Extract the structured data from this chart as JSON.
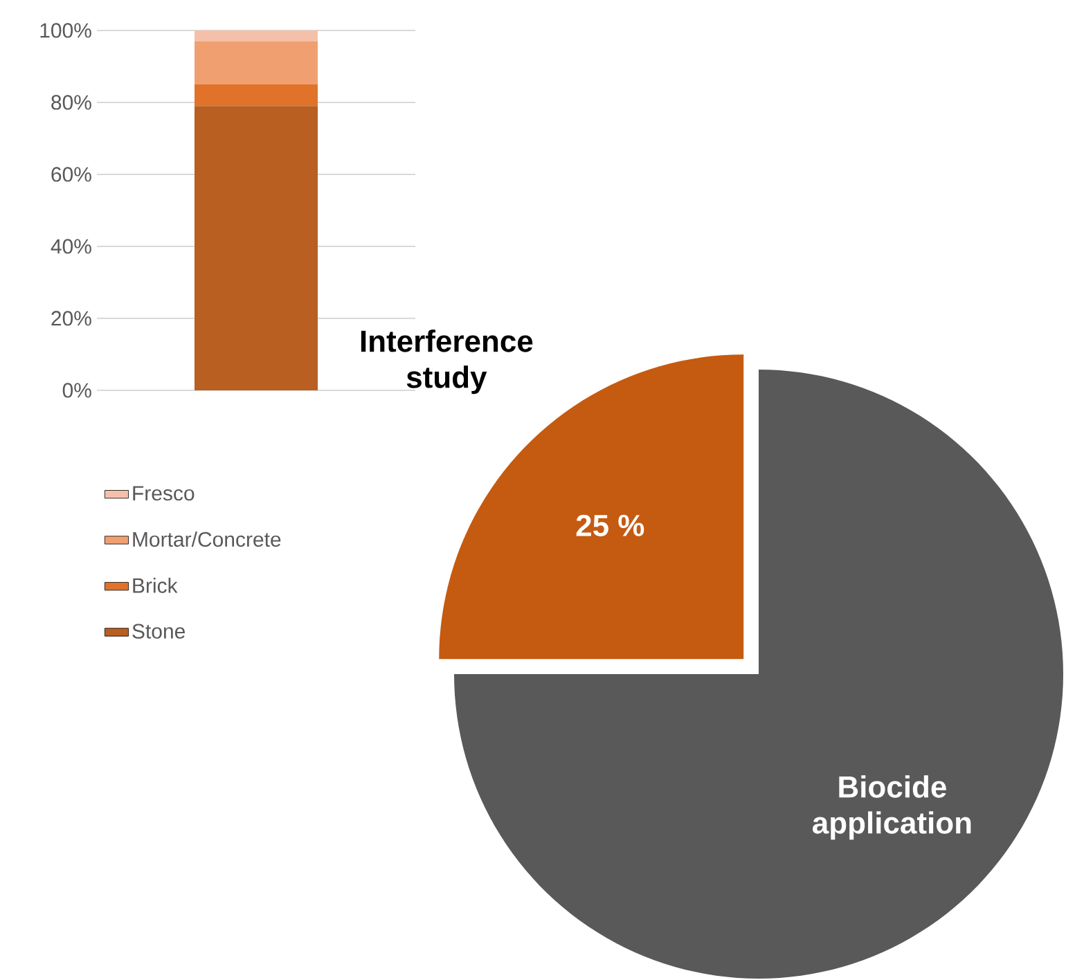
{
  "chart_data": [
    {
      "type": "bar",
      "stacked": true,
      "categories": [
        null
      ],
      "series": [
        {
          "name": "Stone",
          "color": "#b85f21",
          "values": [
            79
          ]
        },
        {
          "name": "Brick",
          "color": "#e0722a",
          "values": [
            6
          ]
        },
        {
          "name": "Mortar/Concrete",
          "color": "#f0a070",
          "values": [
            12
          ]
        },
        {
          "name": "Fresco",
          "color": "#f4c0aa",
          "values": [
            3
          ]
        }
      ],
      "ylim": [
        0,
        100
      ],
      "yticks": [
        {
          "value": 0,
          "label": "0%"
        },
        {
          "value": 20,
          "label": "20%"
        },
        {
          "value": 40,
          "label": "40%"
        },
        {
          "value": 60,
          "label": "60%"
        },
        {
          "value": 80,
          "label": "80%"
        },
        {
          "value": 100,
          "label": "100%"
        }
      ],
      "grid": "y",
      "legend": "bottom"
    },
    {
      "type": "pie",
      "categories": [
        "Interference study",
        "Biocide application"
      ],
      "values": [
        25,
        75
      ],
      "colors": [
        "#c55a11",
        "#595959"
      ],
      "value_labels": [
        "25 %",
        null
      ]
    }
  ]
}
